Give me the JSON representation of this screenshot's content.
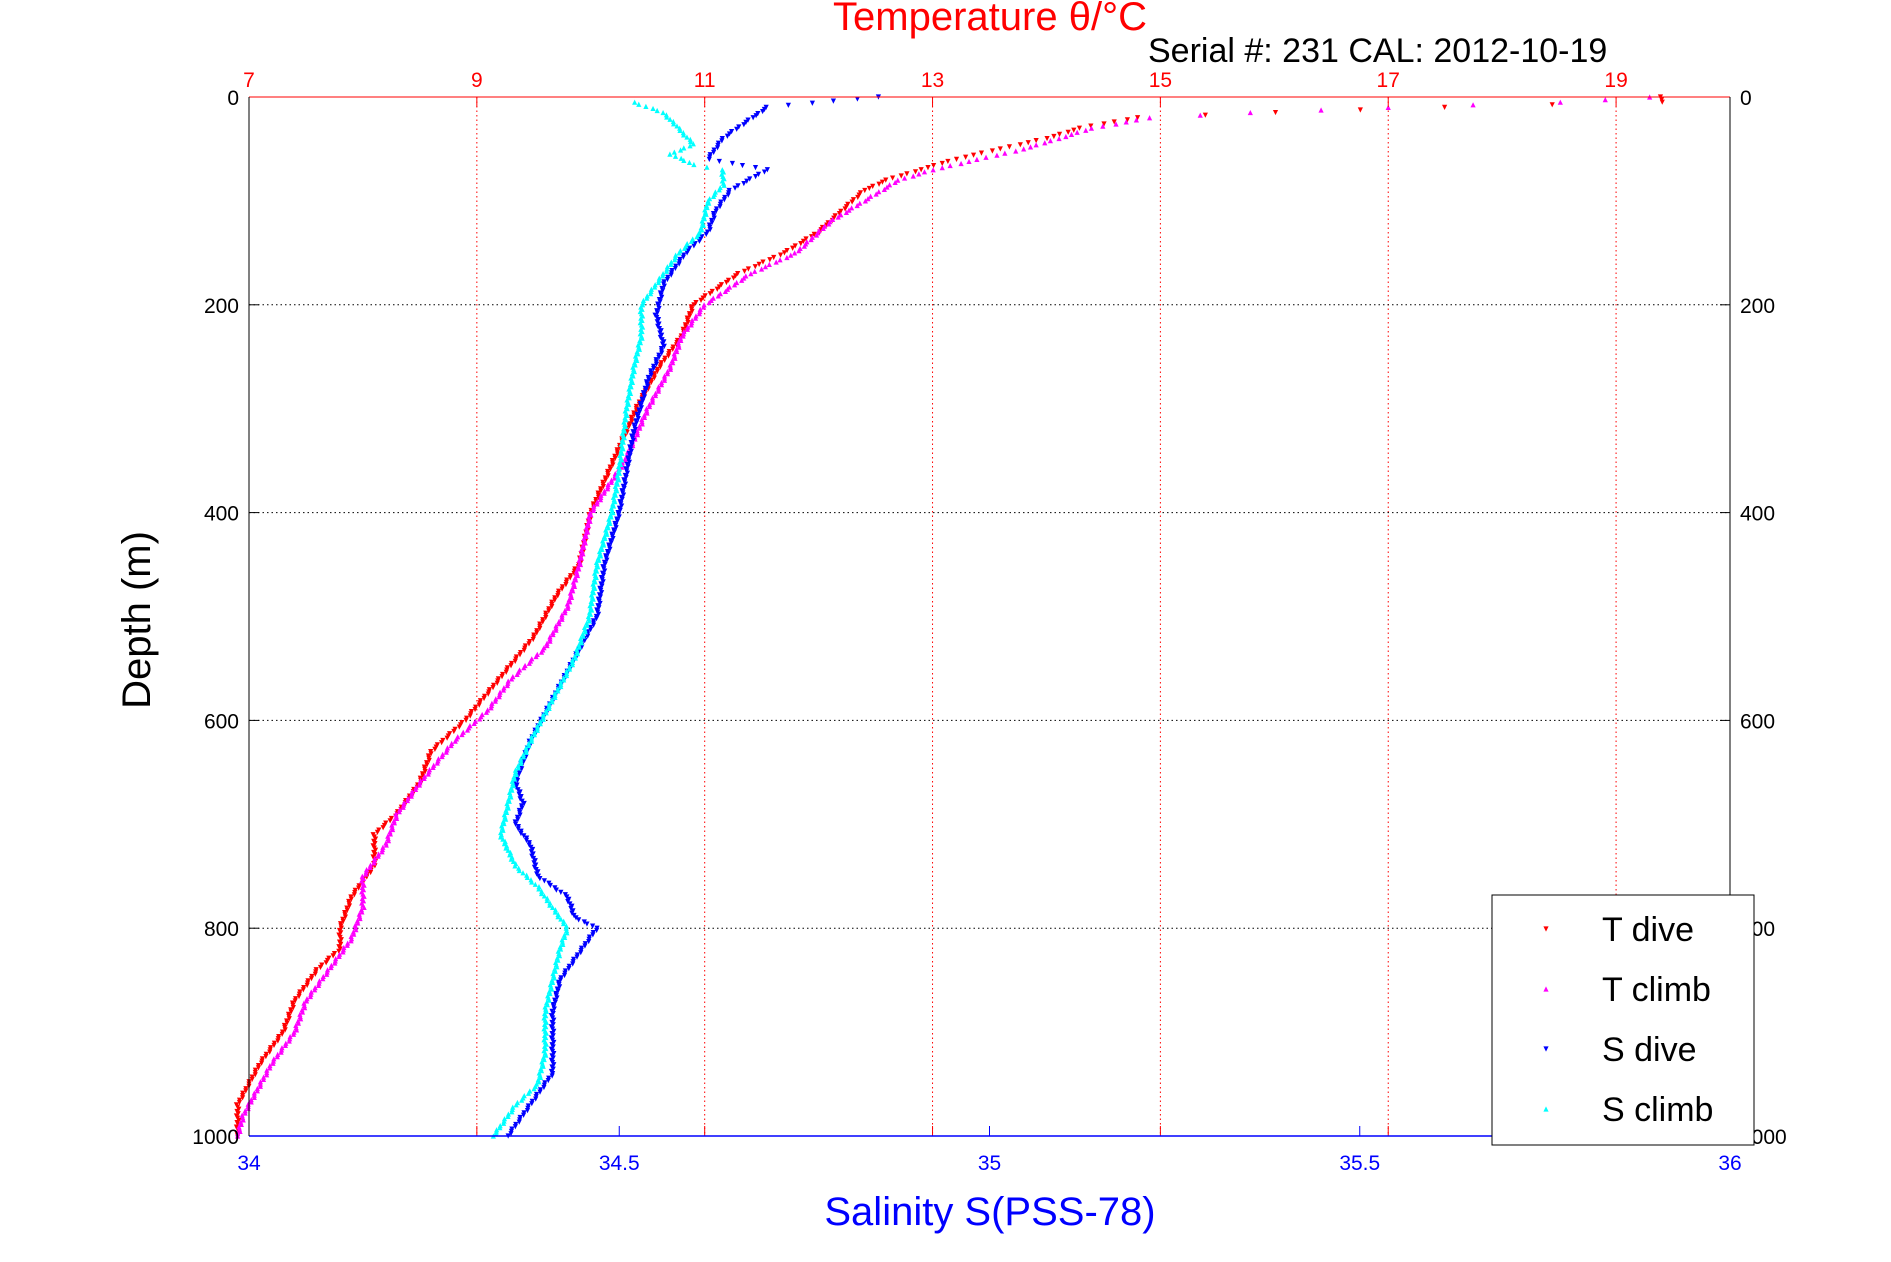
{
  "chart_data": {
    "type": "scatter",
    "title": "Temperature θ/°C",
    "subtitle": "Serial #: 231  CAL: 2012-10-19",
    "xlabel": "Salinity S(PSS-78)",
    "ylabel": "Depth (m)",
    "temperature_axis": {
      "lim": [
        7,
        20
      ],
      "ticks": [
        7,
        9,
        11,
        13,
        15,
        17,
        19
      ],
      "tick_labels": [
        "7",
        "9",
        "11",
        "13",
        "15",
        "17",
        "19"
      ],
      "color": "#ff0000",
      "position": "top",
      "grid": true
    },
    "salinity_axis": {
      "lim": [
        34,
        36
      ],
      "ticks": [
        34,
        34.5,
        35,
        35.5,
        36
      ],
      "tick_labels": [
        "34",
        "34.5",
        "35",
        "35.5",
        "36"
      ],
      "color": "#0000ff",
      "position": "bottom",
      "grid": false
    },
    "depth_axis": {
      "lim": [
        0,
        1000
      ],
      "reversed": true,
      "ticks": [
        0,
        200,
        400,
        600,
        800,
        1000
      ],
      "tick_labels": [
        "0",
        "200",
        "400",
        "600",
        "800",
        "1000"
      ],
      "grid": true,
      "mirrored_right": true
    },
    "legend": {
      "placement": "bottom-right"
    },
    "series": [
      {
        "name": "T dive",
        "variable": "temperature",
        "color": "#ff0000",
        "marker": "triangle-down",
        "points": [
          [
            19.4,
            0
          ],
          [
            19.4,
            5
          ],
          [
            17.5,
            10
          ],
          [
            16.0,
            15
          ],
          [
            14.8,
            20
          ],
          [
            14.3,
            30
          ],
          [
            14.0,
            40
          ],
          [
            13.6,
            50
          ],
          [
            13.2,
            60
          ],
          [
            12.9,
            70
          ],
          [
            12.6,
            80
          ],
          [
            12.4,
            90
          ],
          [
            12.2,
            110
          ],
          [
            12.0,
            130
          ],
          [
            11.7,
            150
          ],
          [
            11.3,
            170
          ],
          [
            10.9,
            200
          ],
          [
            10.8,
            230
          ],
          [
            10.6,
            260
          ],
          [
            10.4,
            300
          ],
          [
            10.2,
            350
          ],
          [
            10.0,
            400
          ],
          [
            9.9,
            450
          ],
          [
            9.7,
            480
          ],
          [
            9.5,
            520
          ],
          [
            9.2,
            560
          ],
          [
            8.9,
            600
          ],
          [
            8.6,
            630
          ],
          [
            8.5,
            660
          ],
          [
            8.3,
            690
          ],
          [
            8.1,
            710
          ],
          [
            8.1,
            740
          ],
          [
            7.9,
            770
          ],
          [
            7.8,
            800
          ],
          [
            7.8,
            820
          ],
          [
            7.6,
            840
          ],
          [
            7.4,
            870
          ],
          [
            7.3,
            900
          ],
          [
            7.1,
            930
          ],
          [
            7.0,
            950
          ],
          [
            6.9,
            970
          ],
          [
            6.9,
            1000
          ]
        ]
      },
      {
        "name": "T climb",
        "variable": "temperature",
        "color": "#ff00ff",
        "marker": "triangle-up",
        "points": [
          [
            19.3,
            0
          ],
          [
            18.5,
            5
          ],
          [
            17.0,
            10
          ],
          [
            15.8,
            15
          ],
          [
            14.9,
            20
          ],
          [
            14.4,
            30
          ],
          [
            14.1,
            40
          ],
          [
            13.8,
            50
          ],
          [
            13.4,
            60
          ],
          [
            13.0,
            70
          ],
          [
            12.7,
            80
          ],
          [
            12.4,
            100
          ],
          [
            12.1,
            120
          ],
          [
            11.8,
            150
          ],
          [
            11.4,
            170
          ],
          [
            11.0,
            200
          ],
          [
            10.8,
            230
          ],
          [
            10.7,
            260
          ],
          [
            10.5,
            300
          ],
          [
            10.3,
            350
          ],
          [
            10.0,
            400
          ],
          [
            9.9,
            450
          ],
          [
            9.8,
            490
          ],
          [
            9.6,
            530
          ],
          [
            9.3,
            560
          ],
          [
            9.1,
            590
          ],
          [
            8.8,
            620
          ],
          [
            8.5,
            660
          ],
          [
            8.3,
            690
          ],
          [
            8.2,
            720
          ],
          [
            8.0,
            750
          ],
          [
            8.0,
            780
          ],
          [
            7.9,
            810
          ],
          [
            7.7,
            840
          ],
          [
            7.5,
            870
          ],
          [
            7.4,
            900
          ],
          [
            7.2,
            930
          ],
          [
            7.1,
            950
          ],
          [
            6.95,
            980
          ],
          [
            6.9,
            1000
          ]
        ]
      },
      {
        "name": "S dive",
        "variable": "salinity",
        "color": "#0000ff",
        "marker": "triangle-down",
        "points": [
          [
            34.85,
            0
          ],
          [
            34.7,
            10
          ],
          [
            34.68,
            20
          ],
          [
            34.64,
            40
          ],
          [
            34.62,
            60
          ],
          [
            34.7,
            70
          ],
          [
            34.65,
            90
          ],
          [
            34.63,
            110
          ],
          [
            34.62,
            130
          ],
          [
            34.59,
            150
          ],
          [
            34.56,
            180
          ],
          [
            34.55,
            210
          ],
          [
            34.56,
            240
          ],
          [
            34.54,
            270
          ],
          [
            34.52,
            320
          ],
          [
            34.51,
            360
          ],
          [
            34.5,
            400
          ],
          [
            34.48,
            450
          ],
          [
            34.47,
            500
          ],
          [
            34.44,
            540
          ],
          [
            34.41,
            580
          ],
          [
            34.38,
            620
          ],
          [
            34.37,
            640
          ],
          [
            34.36,
            660
          ],
          [
            34.37,
            680
          ],
          [
            34.36,
            700
          ],
          [
            34.38,
            720
          ],
          [
            34.39,
            750
          ],
          [
            34.43,
            770
          ],
          [
            34.44,
            790
          ],
          [
            34.47,
            800
          ],
          [
            34.44,
            830
          ],
          [
            34.42,
            850
          ],
          [
            34.41,
            880
          ],
          [
            34.41,
            910
          ],
          [
            34.41,
            940
          ],
          [
            34.39,
            960
          ],
          [
            34.37,
            980
          ],
          [
            34.35,
            1000
          ]
        ]
      },
      {
        "name": "S climb",
        "variable": "salinity",
        "color": "#00ffff",
        "marker": "triangle-up",
        "points": [
          [
            34.52,
            5
          ],
          [
            34.56,
            15
          ],
          [
            34.58,
            30
          ],
          [
            34.6,
            45
          ],
          [
            34.57,
            55
          ],
          [
            34.6,
            65
          ],
          [
            34.64,
            70
          ],
          [
            34.64,
            85
          ],
          [
            34.62,
            100
          ],
          [
            34.61,
            130
          ],
          [
            34.58,
            150
          ],
          [
            34.56,
            170
          ],
          [
            34.53,
            200
          ],
          [
            34.53,
            230
          ],
          [
            34.52,
            260
          ],
          [
            34.51,
            300
          ],
          [
            34.5,
            360
          ],
          [
            34.49,
            400
          ],
          [
            34.47,
            450
          ],
          [
            34.46,
            500
          ],
          [
            34.44,
            540
          ],
          [
            34.41,
            580
          ],
          [
            34.38,
            620
          ],
          [
            34.36,
            650
          ],
          [
            34.35,
            680
          ],
          [
            34.34,
            710
          ],
          [
            34.36,
            740
          ],
          [
            34.39,
            760
          ],
          [
            34.41,
            780
          ],
          [
            34.43,
            800
          ],
          [
            34.42,
            820
          ],
          [
            34.41,
            850
          ],
          [
            34.4,
            880
          ],
          [
            34.4,
            920
          ],
          [
            34.39,
            950
          ],
          [
            34.36,
            970
          ],
          [
            34.34,
            990
          ],
          [
            34.33,
            1000
          ]
        ]
      }
    ]
  }
}
